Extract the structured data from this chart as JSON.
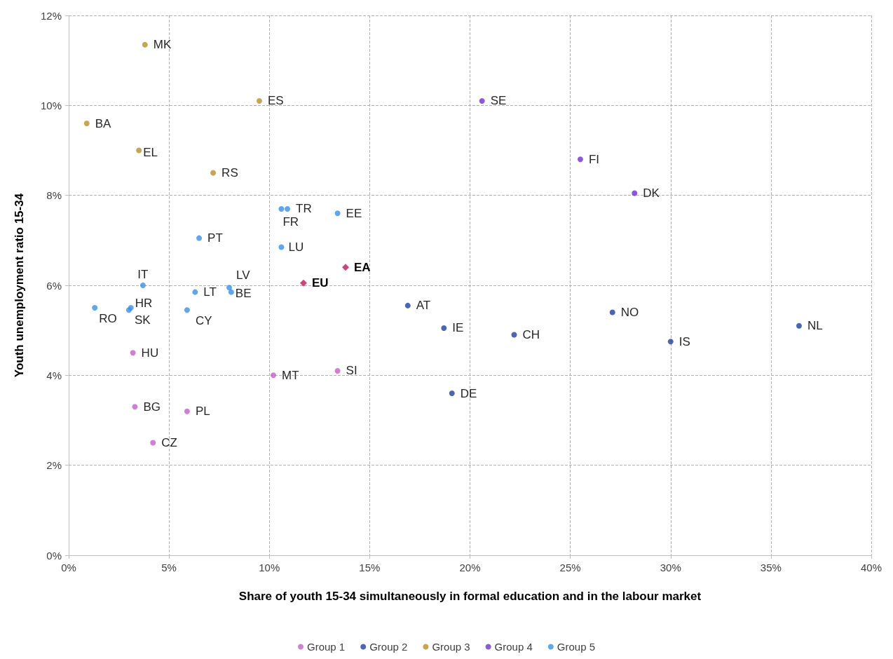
{
  "chart_data": {
    "type": "scatter",
    "xlabel": "Share of youth 15-34 simultaneously in formal education and in the labour market",
    "ylabel": "Youth unemployment ratio 15-34",
    "xlim": [
      0,
      40
    ],
    "xticks": [
      {
        "value": 0,
        "label": "0%"
      },
      {
        "value": 5,
        "label": "5%"
      },
      {
        "value": 10,
        "label": "10%"
      },
      {
        "value": 15,
        "label": "15%"
      },
      {
        "value": 20,
        "label": "20%"
      },
      {
        "value": 25,
        "label": "25%"
      },
      {
        "value": 30,
        "label": "30%"
      },
      {
        "value": 35,
        "label": "35%"
      },
      {
        "value": 40,
        "label": "40%"
      }
    ],
    "ylim": [
      0,
      12
    ],
    "yticks": [
      {
        "value": 0,
        "label": "0%"
      },
      {
        "value": 2,
        "label": "2%"
      },
      {
        "value": 4,
        "label": "4%"
      },
      {
        "value": 6,
        "label": "6%"
      },
      {
        "value": 8,
        "label": "8%"
      },
      {
        "value": 10,
        "label": "10%"
      },
      {
        "value": 12,
        "label": "12%"
      }
    ],
    "grid": true,
    "legend": "bottom",
    "marker": "circle",
    "series": [
      {
        "name": "Group 1",
        "color": "#c55fc5",
        "x": [
          3.2,
          3.3,
          5.9,
          4.2,
          10.2,
          13.4
        ],
        "values": [
          4.5,
          3.3,
          3.2,
          2.5,
          4.0,
          4.1
        ]
      },
      {
        "name": "Group 2",
        "color": "#1f3fa0",
        "x": [
          16.9,
          18.7,
          22.2,
          27.1,
          30.0,
          36.4,
          19.1
        ],
        "values": [
          5.55,
          5.05,
          4.9,
          5.4,
          4.75,
          5.1,
          3.6
        ]
      },
      {
        "name": "Group 3",
        "color": "#b8902a",
        "x": [
          3.8,
          9.5,
          0.9,
          3.5,
          7.2
        ],
        "values": [
          11.35,
          10.1,
          9.6,
          9.0,
          8.5
        ]
      },
      {
        "name": "Group 4",
        "color": "#7030d0",
        "x": [
          20.6,
          25.5,
          28.2
        ],
        "values": [
          10.1,
          8.8,
          8.05
        ]
      },
      {
        "name": "Group 5",
        "color": "#3a8ee6",
        "x": [
          1.3,
          3.1,
          3.0,
          3.7,
          6.3,
          5.9,
          6.5,
          8.0,
          8.1,
          10.6,
          10.9,
          10.6,
          13.4
        ],
        "values": [
          5.5,
          5.5,
          5.45,
          6.0,
          5.85,
          5.45,
          7.05,
          5.95,
          5.85,
          6.85,
          7.7,
          7.7,
          7.6
        ]
      },
      {
        "color": "#c0185a",
        "marker": "diamond",
        "x": [
          13.8,
          11.7
        ],
        "values": [
          6.4,
          6.05
        ]
      }
    ],
    "annotations": [
      {
        "text": "MK",
        "x": 3.8,
        "y": 11.35
      },
      {
        "text": "ES",
        "x": 9.5,
        "y": 10.1
      },
      {
        "text": "BA",
        "x": 0.9,
        "y": 9.6
      },
      {
        "text": "EL",
        "x": 3.5,
        "y": 9.0
      },
      {
        "text": "RS",
        "x": 7.2,
        "y": 8.5
      },
      {
        "text": "SE",
        "x": 20.6,
        "y": 10.1
      },
      {
        "text": "FI",
        "x": 25.5,
        "y": 8.8
      },
      {
        "text": "DK",
        "x": 28.2,
        "y": 8.05
      },
      {
        "text": "AT",
        "x": 16.9,
        "y": 5.55
      },
      {
        "text": "IE",
        "x": 18.7,
        "y": 5.05
      },
      {
        "text": "CH",
        "x": 22.2,
        "y": 4.9
      },
      {
        "text": "NO",
        "x": 27.1,
        "y": 5.4
      },
      {
        "text": "IS",
        "x": 30.0,
        "y": 4.75
      },
      {
        "text": "NL",
        "x": 36.4,
        "y": 5.1
      },
      {
        "text": "DE",
        "x": 19.1,
        "y": 3.6
      },
      {
        "text": "HU",
        "x": 3.2,
        "y": 4.5
      },
      {
        "text": "BG",
        "x": 3.3,
        "y": 3.3
      },
      {
        "text": "PL",
        "x": 5.9,
        "y": 3.2
      },
      {
        "text": "CZ",
        "x": 4.2,
        "y": 2.5
      },
      {
        "text": "MT",
        "x": 10.2,
        "y": 4.0
      },
      {
        "text": "SI",
        "x": 13.4,
        "y": 4.1
      },
      {
        "text": "RO",
        "x": 1.3,
        "y": 5.5
      },
      {
        "text": "HR",
        "x": 3.1,
        "y": 5.5
      },
      {
        "text": "SK",
        "x": 3.0,
        "y": 5.45
      },
      {
        "text": "IT",
        "x": 3.7,
        "y": 6.0
      },
      {
        "text": "LT",
        "x": 6.3,
        "y": 5.85
      },
      {
        "text": "CY",
        "x": 5.9,
        "y": 5.45
      },
      {
        "text": "PT",
        "x": 6.5,
        "y": 7.05
      },
      {
        "text": "LV",
        "x": 8.0,
        "y": 5.95
      },
      {
        "text": "BE",
        "x": 8.1,
        "y": 5.85
      },
      {
        "text": "LU",
        "x": 10.6,
        "y": 6.85
      },
      {
        "text": "TR",
        "x": 10.9,
        "y": 7.7
      },
      {
        "text": "FR",
        "x": 10.6,
        "y": 7.7
      },
      {
        "text": "EE",
        "x": 13.4,
        "y": 7.6
      },
      {
        "text": "EA",
        "x": 13.8,
        "y": 6.4
      },
      {
        "text": "EU",
        "x": 11.7,
        "y": 6.05
      }
    ]
  }
}
